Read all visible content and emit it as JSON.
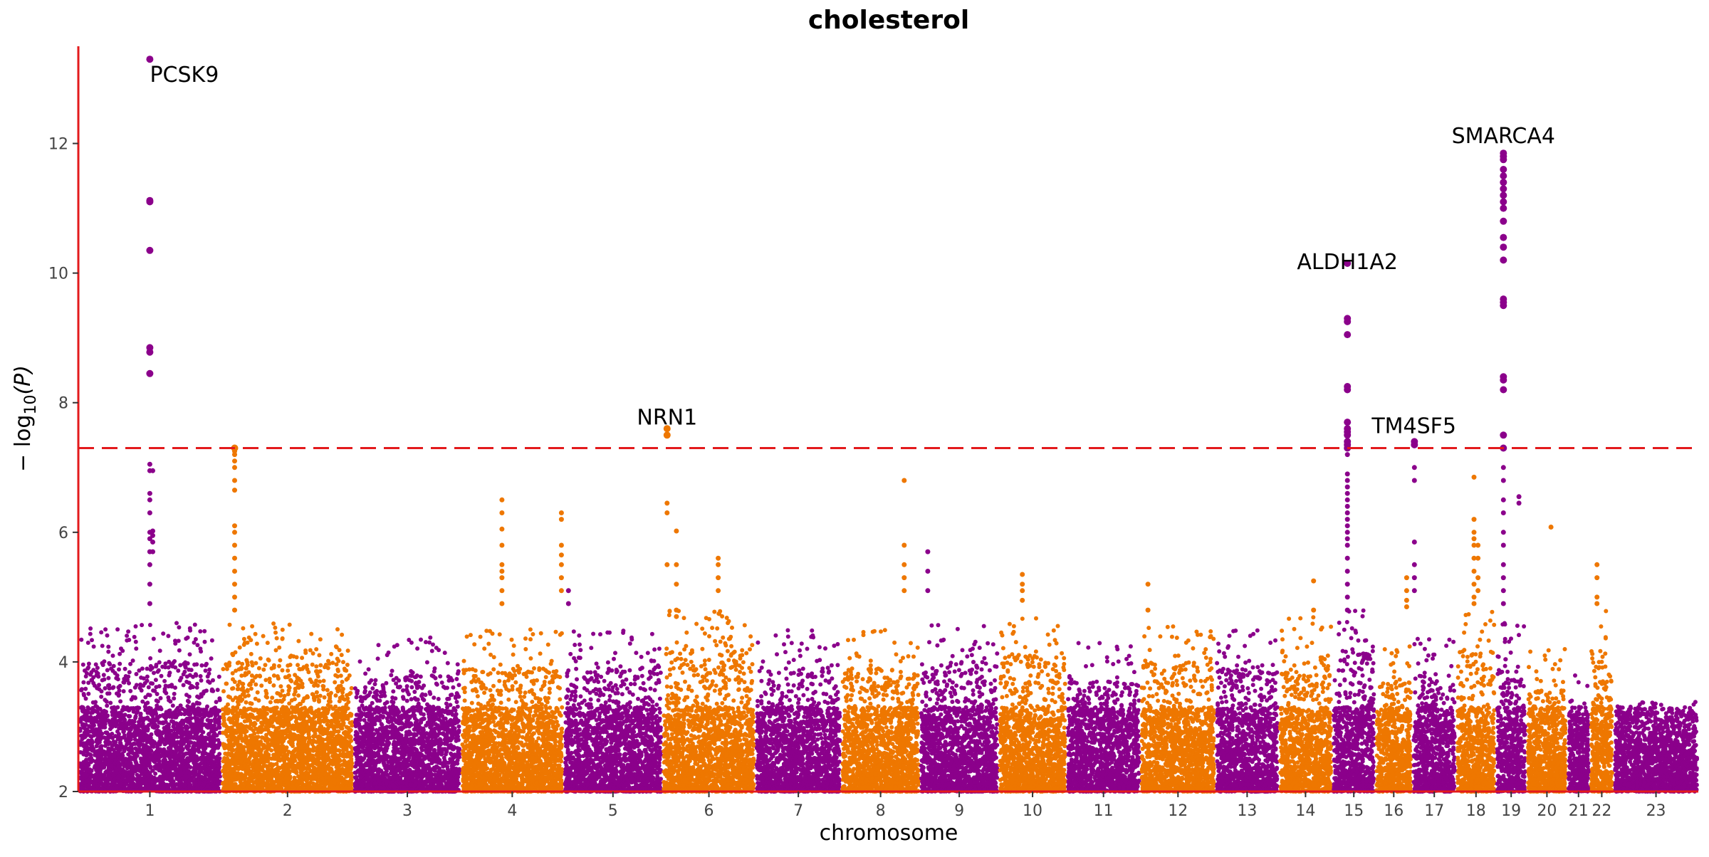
{
  "chart_data": {
    "type": "scatter",
    "subtype": "manhattan",
    "title": "cholesterol",
    "xlabel": "chromosome",
    "ylabel_prefix": "− log",
    "ylabel_sub": "10",
    "ylabel_suffix": "(P)",
    "ylim": [
      2,
      13.5
    ],
    "yticks": [
      2,
      4,
      6,
      8,
      10,
      12
    ],
    "grid": false,
    "legend": "none",
    "threshold": 7.3,
    "colors": {
      "odd": "#8B008B",
      "even": "#EE7700",
      "axis": "#E31A1C",
      "threshold": "#E31A1C"
    },
    "chromosomes": [
      {
        "label": "1",
        "size": 120,
        "peak": 4.6
      },
      {
        "label": "2",
        "size": 111,
        "peak": 4.6
      },
      {
        "label": "3",
        "size": 90,
        "peak": 4.4
      },
      {
        "label": "4",
        "size": 86,
        "peak": 4.5
      },
      {
        "label": "5",
        "size": 83,
        "peak": 4.5
      },
      {
        "label": "6",
        "size": 78,
        "peak": 4.8
      },
      {
        "label": "7",
        "size": 72,
        "peak": 4.5
      },
      {
        "label": "8",
        "size": 66,
        "peak": 4.5
      },
      {
        "label": "9",
        "size": 66,
        "peak": 4.6
      },
      {
        "label": "10",
        "size": 57,
        "peak": 4.7
      },
      {
        "label": "11",
        "size": 62,
        "peak": 4.3
      },
      {
        "label": "12",
        "size": 63,
        "peak": 4.6
      },
      {
        "label": "13",
        "size": 53,
        "peak": 4.5
      },
      {
        "label": "14",
        "size": 45,
        "peak": 4.7
      },
      {
        "label": "15",
        "size": 36,
        "peak": 4.8
      },
      {
        "label": "16",
        "size": 31,
        "peak": 4.3
      },
      {
        "label": "17",
        "size": 37,
        "peak": 4.4
      },
      {
        "label": "18",
        "size": 33,
        "peak": 4.8
      },
      {
        "label": "19",
        "size": 26,
        "peak": 4.6
      },
      {
        "label": "20",
        "size": 34,
        "peak": 4.2
      },
      {
        "label": "21",
        "size": 19,
        "peak": 3.8
      },
      {
        "label": "22",
        "size": 20,
        "peak": 4.9
      },
      {
        "label": "23",
        "size": 71,
        "peak": 3.4
      }
    ],
    "top_hits": [
      {
        "chr": "1",
        "pos": 0.5,
        "values": [
          13.3,
          11.1,
          11.12,
          10.35,
          8.85,
          8.78,
          8.45,
          7.05,
          6.95,
          6.6,
          6.5,
          6.3,
          6.0,
          5.9,
          5.7,
          5.5,
          5.2,
          4.9
        ]
      },
      {
        "chr": "1",
        "pos": 0.52,
        "values": [
          6.95,
          6.02,
          5.95,
          5.85,
          5.7
        ]
      },
      {
        "chr": "2",
        "pos": 0.1,
        "values": [
          7.3,
          7.25,
          7.2,
          7.1,
          7.0,
          6.8,
          6.65,
          6.1,
          6.0,
          5.8,
          5.6,
          5.4,
          5.2,
          5.0,
          4.8
        ]
      },
      {
        "chr": "4",
        "pos": 0.4,
        "values": [
          6.5,
          6.3,
          6.05,
          5.8,
          5.5,
          5.4,
          5.3,
          5.1,
          4.9
        ]
      },
      {
        "chr": "4",
        "pos": 0.98,
        "values": [
          6.3,
          6.2,
          5.8,
          5.65,
          5.5,
          5.3,
          5.1
        ]
      },
      {
        "chr": "5",
        "pos": 0.05,
        "values": [
          5.1,
          4.9
        ]
      },
      {
        "chr": "6",
        "pos": 0.05,
        "values": [
          7.6,
          7.5,
          6.45,
          6.3,
          5.5
        ]
      },
      {
        "chr": "6",
        "pos": 0.15,
        "values": [
          6.02,
          5.5,
          5.2,
          4.8,
          4.7
        ]
      },
      {
        "chr": "6",
        "pos": 0.6,
        "values": [
          5.6,
          5.5,
          5.3,
          5.1
        ]
      },
      {
        "chr": "8",
        "pos": 0.8,
        "values": [
          6.8,
          5.8,
          5.5,
          5.3,
          5.1
        ]
      },
      {
        "chr": "9",
        "pos": 0.1,
        "values": [
          5.7,
          5.4,
          5.1
        ]
      },
      {
        "chr": "10",
        "pos": 0.35,
        "values": [
          5.35,
          5.2,
          5.1,
          4.95
        ]
      },
      {
        "chr": "12",
        "pos": 0.1,
        "values": [
          5.2,
          4.8
        ]
      },
      {
        "chr": "14",
        "pos": 0.65,
        "values": [
          5.25,
          4.8
        ]
      },
      {
        "chr": "15",
        "pos": 0.35,
        "values": [
          10.15,
          9.3,
          9.25,
          9.05,
          8.25,
          8.2,
          7.7,
          7.6,
          7.55,
          7.5,
          7.4,
          7.35,
          7.3,
          7.2,
          6.9,
          6.8,
          6.7,
          6.6,
          6.5,
          6.4,
          6.3,
          6.2,
          6.1,
          6.0,
          5.9,
          5.8,
          5.6,
          5.4,
          5.2,
          5.0,
          4.8
        ]
      },
      {
        "chr": "16",
        "pos": 0.85,
        "values": [
          5.3,
          5.1,
          4.95,
          4.85
        ]
      },
      {
        "chr": "17",
        "pos": 0.05,
        "values": [
          7.4,
          7.35,
          7.0,
          6.8,
          5.85,
          5.5,
          5.3,
          5.1
        ]
      },
      {
        "chr": "18",
        "pos": 0.45,
        "values": [
          6.85,
          6.2,
          6.0,
          5.9,
          5.8,
          5.6,
          5.4,
          5.2,
          5.0,
          4.9
        ]
      },
      {
        "chr": "18",
        "pos": 0.55,
        "values": [
          5.8,
          5.6,
          5.3,
          5.1
        ]
      },
      {
        "chr": "19",
        "pos": 0.25,
        "values": [
          11.85,
          11.8,
          11.75,
          11.6,
          11.5,
          11.4,
          11.3,
          11.2,
          11.1,
          11.0,
          10.8,
          10.55,
          10.4,
          10.2,
          9.6,
          9.55,
          9.5,
          8.4,
          8.35,
          8.2,
          7.5,
          7.3,
          7.0,
          6.8,
          6.5,
          6.3,
          6.0,
          5.8,
          5.5,
          5.3,
          5.1,
          4.9
        ]
      },
      {
        "chr": "19",
        "pos": 0.75,
        "values": [
          6.55,
          6.45
        ]
      },
      {
        "chr": "20",
        "pos": 0.6,
        "values": [
          6.08
        ]
      },
      {
        "chr": "22",
        "pos": 0.3,
        "values": [
          5.5,
          5.3,
          5.0,
          4.9
        ]
      }
    ],
    "annotations": [
      {
        "label": "PCSK9",
        "chr": "1",
        "pos": 0.5,
        "y": 13.3,
        "anchor": "start",
        "dy": 32,
        "dx": 0
      },
      {
        "label": "NRN1",
        "chr": "6",
        "pos": 0.05,
        "y": 7.55,
        "anchor": "middle",
        "dy": -10,
        "dx": 0
      },
      {
        "label": "ALDH1A2",
        "chr": "15",
        "pos": 0.35,
        "y": 10.15,
        "anchor": "middle",
        "dy": 8,
        "dx": 0
      },
      {
        "label": "TM4SF5",
        "chr": "17",
        "pos": 0.05,
        "y": 7.4,
        "anchor": "start",
        "dy": -12,
        "dx": -60
      },
      {
        "label": "SMARCA4",
        "chr": "19",
        "pos": 0.25,
        "y": 11.85,
        "anchor": "middle",
        "dy": -14,
        "dx": 0
      }
    ]
  }
}
